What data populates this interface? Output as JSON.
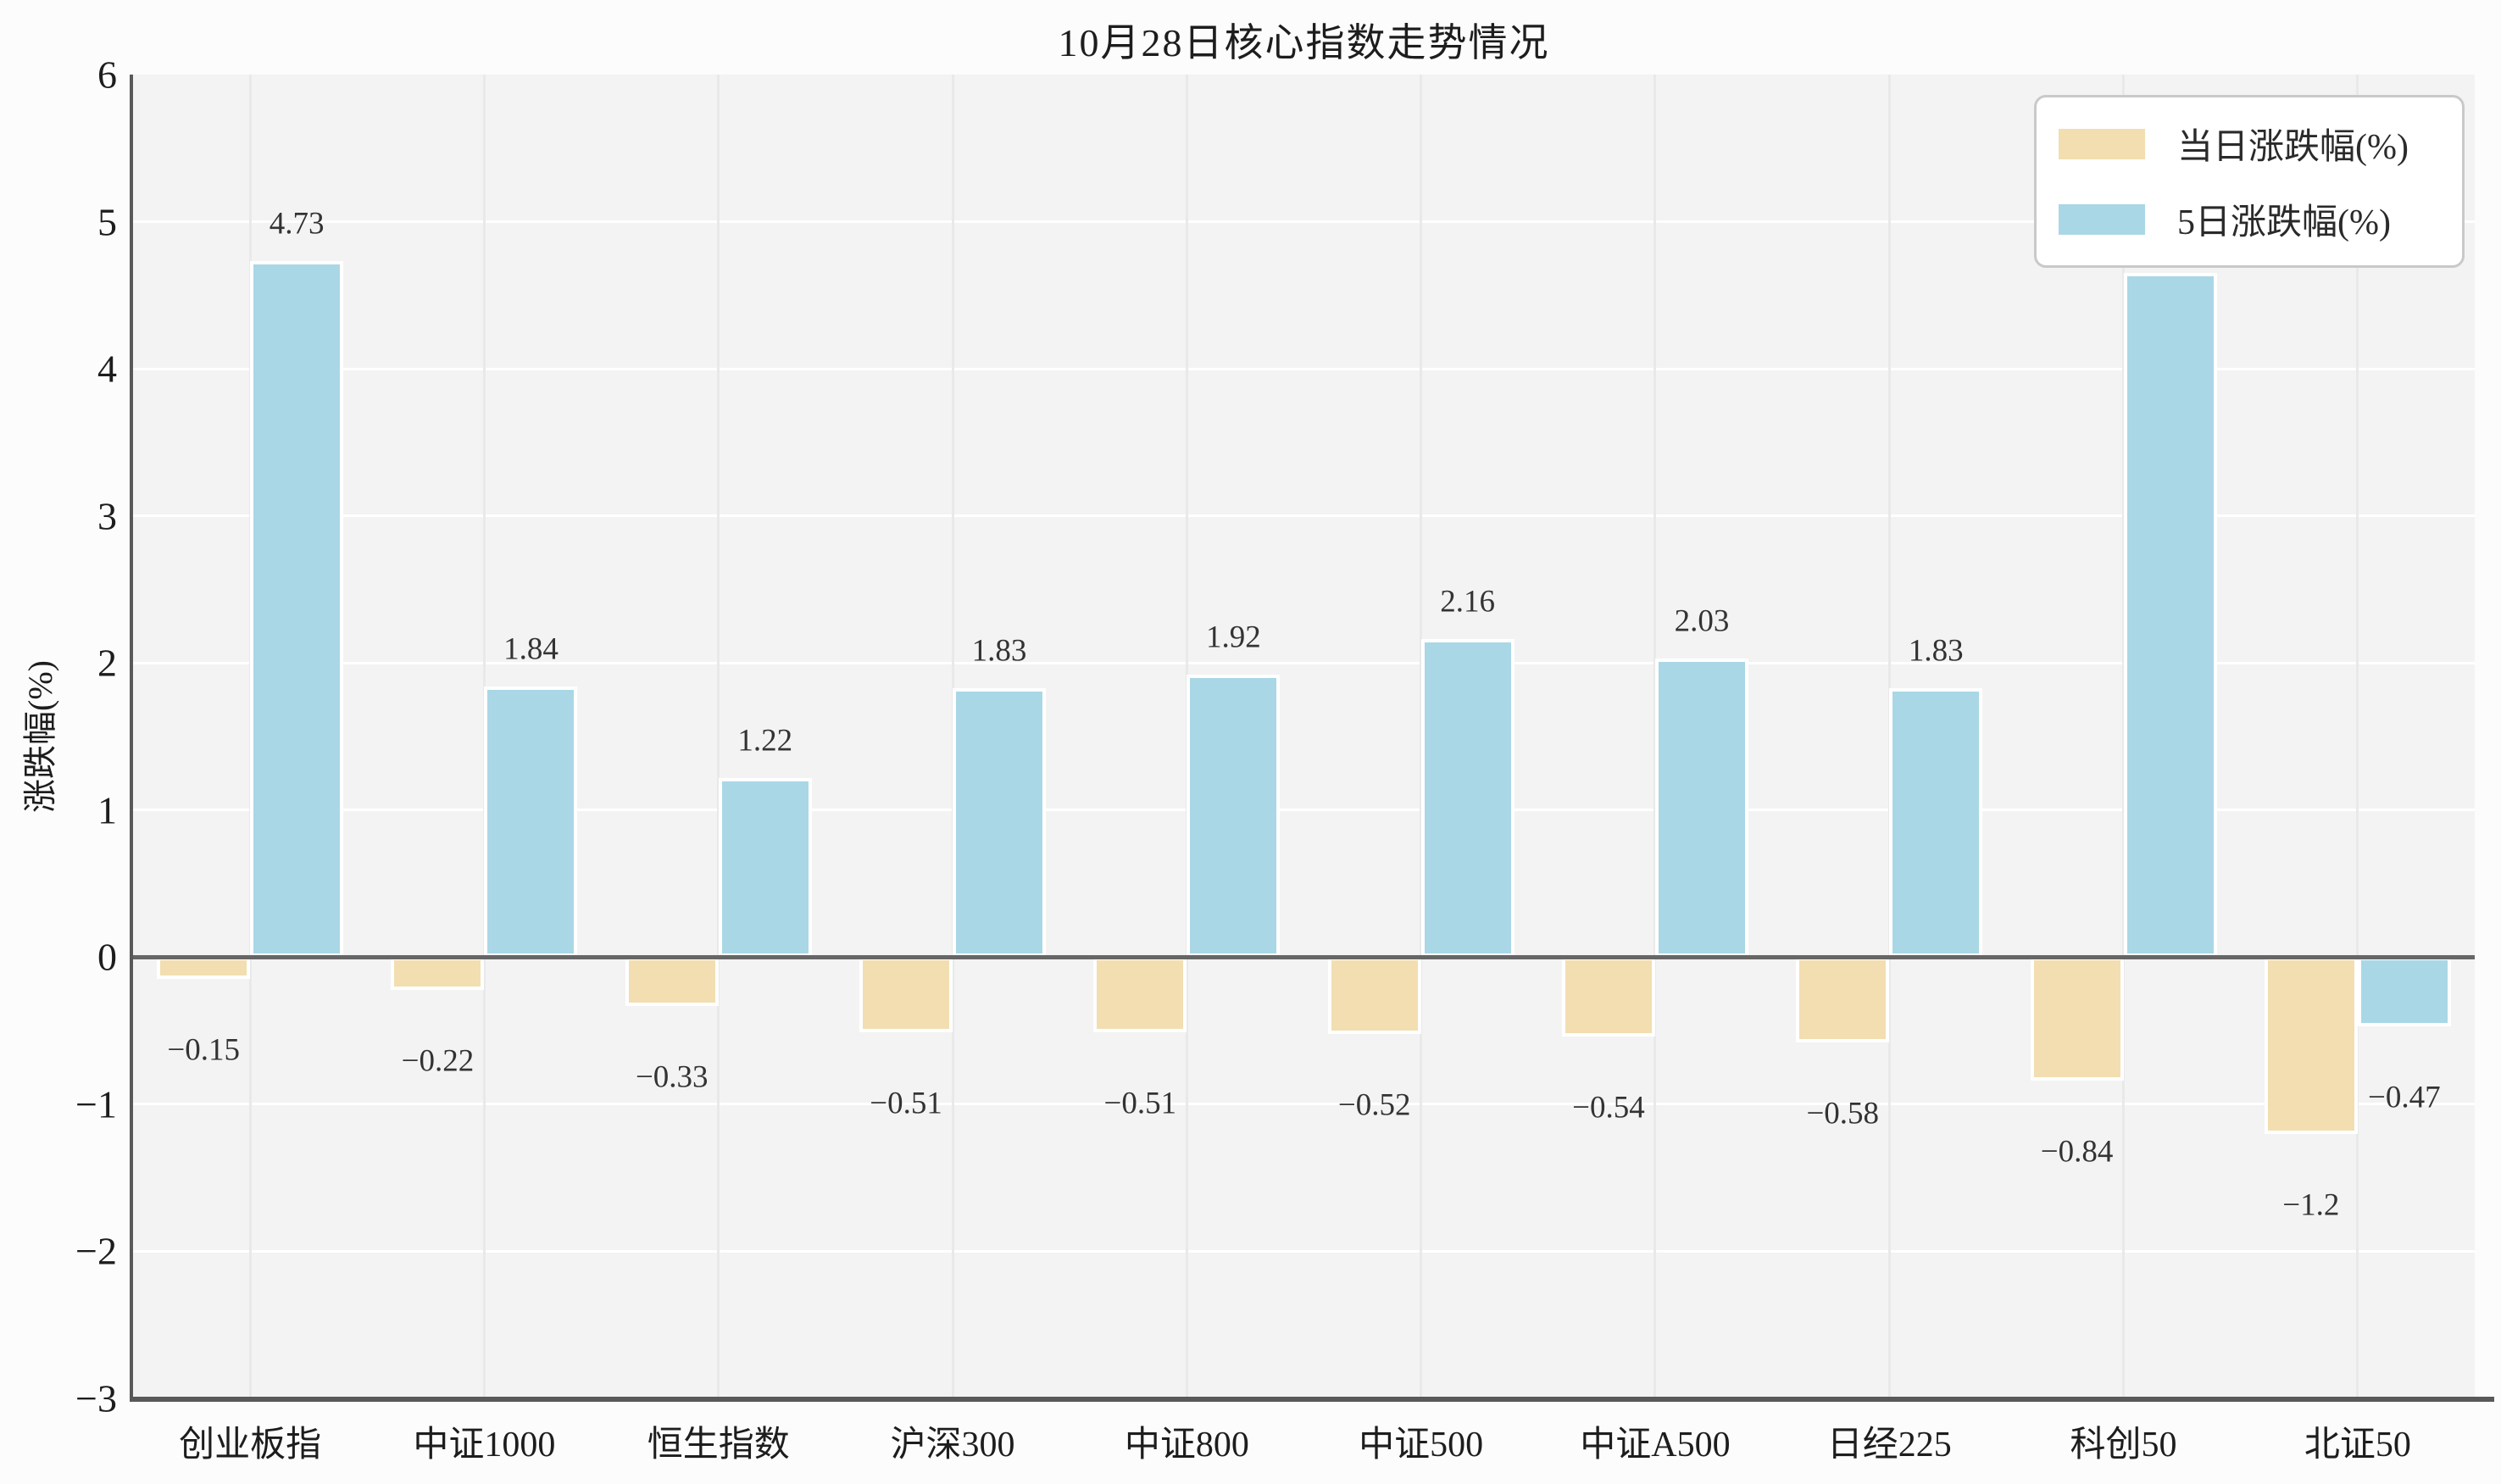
{
  "chart_data": {
    "type": "bar",
    "title": "10月28日核心指数走势情况",
    "xlabel": "",
    "ylabel": "涨跌幅(%)",
    "categories": [
      "创业板指",
      "中证1000",
      "恒生指数",
      "沪深300",
      "中证800",
      "中证500",
      "中证A500",
      "日经225",
      "科创50",
      "北证50"
    ],
    "series": [
      {
        "name": "当日涨跌幅(%)",
        "color": "#f2deb1",
        "values": [
          -0.15,
          -0.22,
          -0.33,
          -0.51,
          -0.51,
          -0.52,
          -0.54,
          -0.58,
          -0.84,
          -1.2
        ]
      },
      {
        "name": "5日涨跌幅(%)",
        "color": "#a9d7e6",
        "values": [
          4.73,
          1.84,
          1.22,
          1.83,
          1.92,
          2.16,
          2.03,
          1.83,
          4.65,
          -0.47
        ]
      }
    ],
    "ylim": [
      -3,
      6
    ],
    "yticks": [
      -3,
      -2,
      -1,
      0,
      1,
      2,
      3,
      4,
      5,
      6
    ],
    "grid": true,
    "legend_position": "upper right",
    "plot_background": "#f3f3f3",
    "figure_background": "#fcfcfc",
    "grid_color_horizontal": "#ffffff",
    "grid_color_vertical": "#e9e9e9",
    "axis_color": "#595959"
  }
}
